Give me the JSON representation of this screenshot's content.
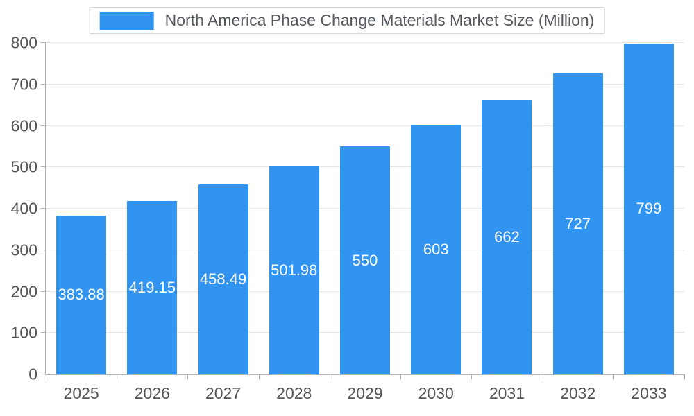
{
  "chart_data": {
    "type": "bar",
    "title": "North America Phase Change Materials Market  Size (Million)",
    "categories": [
      "2025",
      "2026",
      "2027",
      "2028",
      "2029",
      "2030",
      "2031",
      "2032",
      "2033"
    ],
    "values": [
      383.88,
      419.15,
      458.49,
      501.98,
      550,
      603,
      662,
      727,
      799
    ],
    "value_labels": [
      "383.88",
      "419.15",
      "458.49",
      "501.98",
      "550",
      "603",
      "662",
      "727",
      "799"
    ],
    "xlabel": "",
    "ylabel": "",
    "ylim": [
      0,
      800
    ],
    "ytick_step": 100,
    "ytick_labels": [
      "0",
      "100",
      "200",
      "300",
      "400",
      "500",
      "600",
      "700",
      "800"
    ],
    "grid": true,
    "legend_position": "top",
    "colors": {
      "bar": "#3194F0",
      "bar_value_label": "#ffffff",
      "axis_text": "#555555",
      "gridline": "#e6e6e6",
      "axis_line": "#b0b0b0",
      "legend_text": "#555a60",
      "background": "#ffffff"
    }
  }
}
